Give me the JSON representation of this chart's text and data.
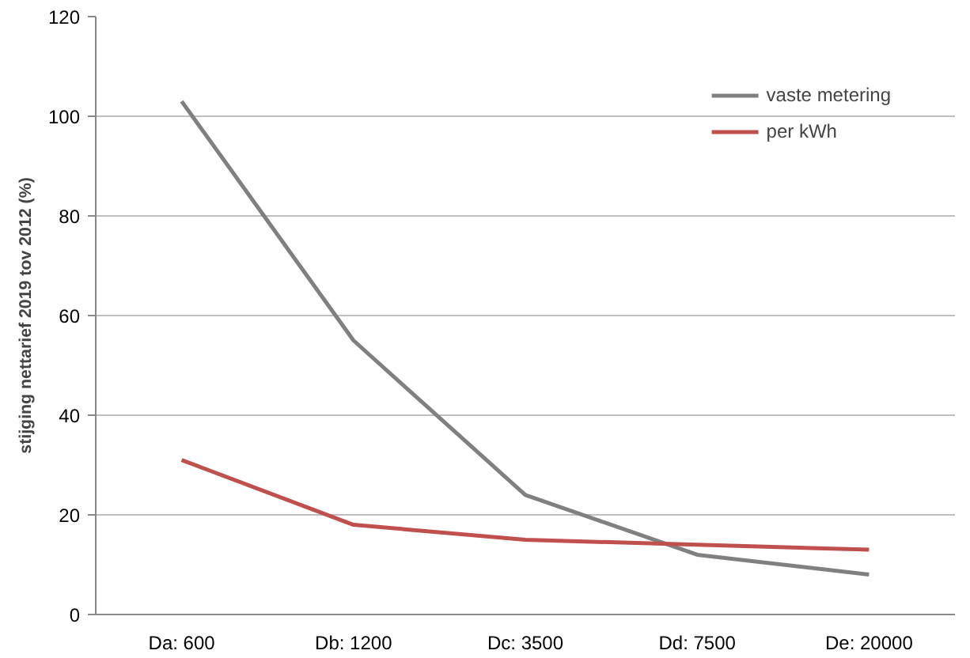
{
  "chart_data": {
    "type": "line",
    "ylabel": "stijging nettarief 2019 tov 2012 (%)",
    "categories": [
      "Da: 600",
      "Db: 1200",
      "Dc: 3500",
      "Dd: 7500",
      "De: 20000"
    ],
    "series": [
      {
        "name": "vaste metering",
        "color": "#808080",
        "values": [
          103,
          55,
          24,
          12,
          8
        ]
      },
      {
        "name": "per kWh",
        "color": "#c0504d",
        "values": [
          31,
          18,
          15,
          14,
          13
        ]
      }
    ],
    "ylim": [
      0,
      120
    ],
    "yticks": [
      0,
      20,
      40,
      60,
      80,
      100,
      120
    ],
    "grid": "y",
    "legend": "top right",
    "marker": "none",
    "line_style": "solid"
  }
}
